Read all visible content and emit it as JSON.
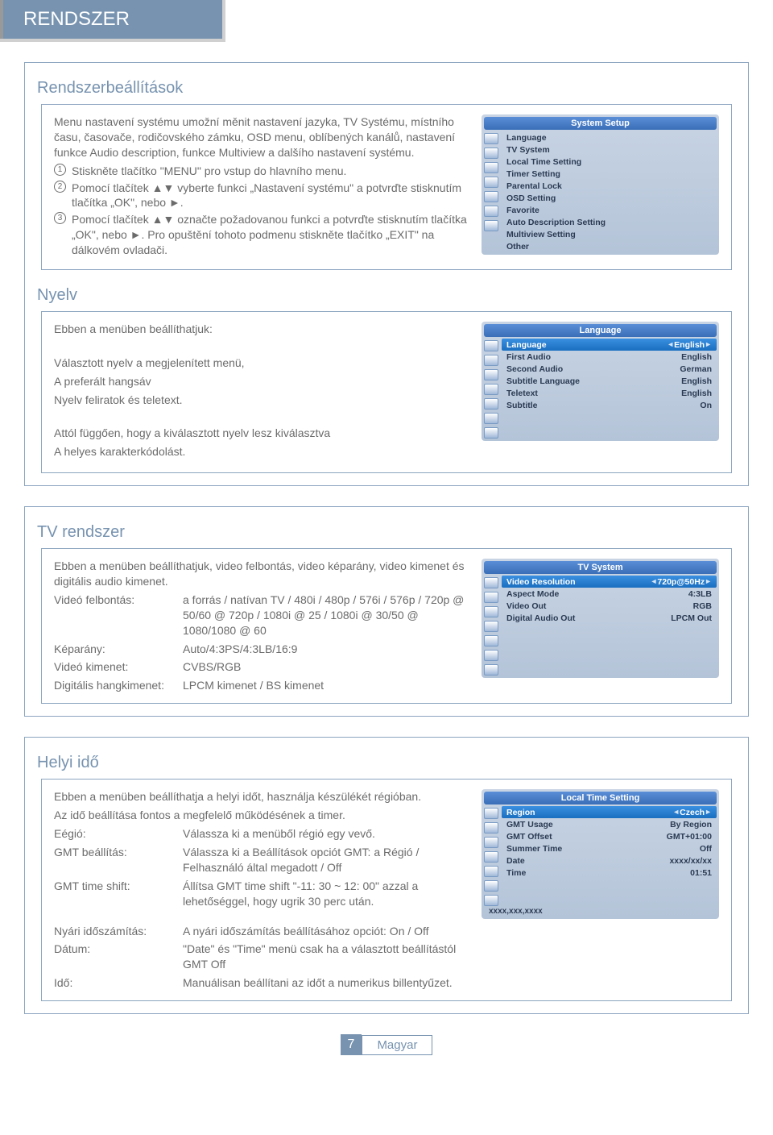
{
  "header": "RENDSZER",
  "s1": {
    "title": "Rendszerbeállítások",
    "intro": "Menu nastavení systému umožní měnit nastavení jazyka, TV Systému, místního času, časovače, rodičovského zámku, OSD menu, oblíbených kanálů, nastavení funkce Audio description, funkce Multiview a dalšího nastavení systému.",
    "li1": "Stiskněte tlačítko \"MENU\" pro vstup do hlavního menu.",
    "li2": "Pomocí tlačítek ▲▼ vyberte funkci „Nastavení systému\" a potvrďte stisknutím tlačítka „OK\", nebo ►.",
    "li3": "Pomocí tlačítek ▲▼ označte požadovanou funkci a potvrďte stisknutím tlačítka „OK\", nebo ►. Pro opuštění tohoto podmenu stiskněte tlačítko „EXIT\" na dálkovém ovladači."
  },
  "osd1": {
    "title": "System Setup",
    "items": [
      "Language",
      "TV System",
      "Local Time Setting",
      "Timer Setting",
      "Parental Lock",
      "OSD Setting",
      "Favorite",
      "Auto Description Setting",
      "Multiview Setting",
      "Other"
    ]
  },
  "s2": {
    "title": "Nyelv",
    "p1": "Ebben a menüben beállíthatjuk:",
    "p2": "Választott nyelv a megjelenített menü,",
    "p3": "A preferált hangsáv",
    "p4": "Nyelv feliratok és teletext.",
    "p5": "Attól függően, hogy a kiválasztott nyelv lesz kiválasztva",
    "p6": "A helyes karakterkódolást."
  },
  "osd2": {
    "title": "Language",
    "rows": [
      {
        "l": "Language",
        "v": "English",
        "sel": true
      },
      {
        "l": "First Audio",
        "v": "English"
      },
      {
        "l": "Second Audio",
        "v": "German"
      },
      {
        "l": "Subtitle Language",
        "v": "English"
      },
      {
        "l": "Teletext",
        "v": "English"
      },
      {
        "l": "Subtitle",
        "v": "On"
      }
    ]
  },
  "s3": {
    "title": "TV rendszer",
    "intro": "Ebben a menüben beállíthatjuk, video felbontás, video képarány, video kimenet és digitális audio kimenet.",
    "rows": [
      {
        "k": "Videó felbontás:",
        "v": "a forrás / natívan TV / 480i / 480p / 576i / 576p / 720p @ 50/60 @ 720p / 1080i @ 25 / 1080i @ 30/50 @ 1080/1080 @ 60"
      },
      {
        "k": "Képarány:",
        "v": "Auto/4:3PS/4:3LB/16:9"
      },
      {
        "k": "Videó kimenet:",
        "v": "CVBS/RGB"
      },
      {
        "k": "Digitális hangkimenet:",
        "v": "LPCM kimenet / BS kimenet"
      }
    ]
  },
  "osd3": {
    "title": "TV System",
    "rows": [
      {
        "l": "Video Resolution",
        "v": "720p@50Hz",
        "sel": true
      },
      {
        "l": "Aspect Mode",
        "v": "4:3LB"
      },
      {
        "l": "Video Out",
        "v": "RGB"
      },
      {
        "l": "Digital Audio Out",
        "v": "LPCM Out"
      }
    ]
  },
  "s4": {
    "title": "Helyi idő",
    "p1": "Ebben a menüben beállíthatja a helyi időt, használja készülékét régióban.",
    "p2": "Az idő beállítása fontos a megfelelő működésének a timer.",
    "rows": [
      {
        "k": "Eégió:",
        "v": "Válassza ki a menüből régió egy vevő."
      },
      {
        "k": "GMT beállítás:",
        "v": "Válassza ki a Beállítások opciót GMT: a Régió / Felhasználó által megadott / Off"
      },
      {
        "k": "GMT time shift:",
        "v": "Állítsa GMT time shift \"-11: 30 ~ 12: 00\" azzal a lehetőséggel, hogy ugrik 30 perc után."
      },
      {
        "k": "Nyári időszámítás:",
        "v": "A nyári időszámítás beállításához opciót: On / Off"
      },
      {
        "k": "Dátum:",
        "v": "\"Date\" és \"Time\" menü csak ha a választott beállítástól GMT Off"
      },
      {
        "k": "Idő:",
        "v": "Manuálisan beállítani az időt a numerikus billentyűzet."
      }
    ]
  },
  "osd4": {
    "title": "Local Time Setting",
    "rows": [
      {
        "l": "Region",
        "v": "Czech",
        "sel": true
      },
      {
        "l": "GMT Usage",
        "v": "By Region"
      },
      {
        "l": "GMT Offset",
        "v": "GMT+01:00"
      },
      {
        "l": "Summer Time",
        "v": "Off"
      },
      {
        "l": "Date",
        "v": "xxxx/xx/xx"
      },
      {
        "l": "Time",
        "v": "01:51"
      }
    ],
    "footer": "xxxx,xxx,xxxx"
  },
  "footer": {
    "page": "7",
    "lang": "Magyar"
  }
}
